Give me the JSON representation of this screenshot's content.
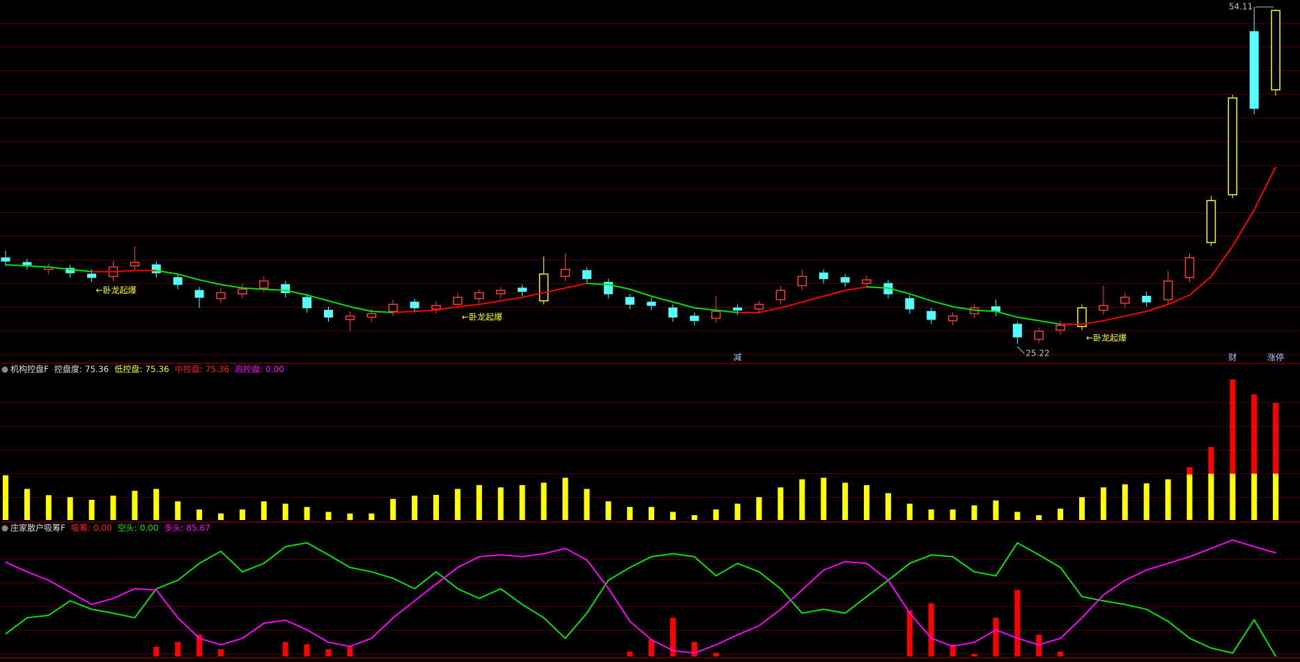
{
  "chart_data": [
    {
      "type": "candlestick",
      "open": [
        32.6,
        32.2,
        31.6,
        31.7,
        31.2,
        31.0,
        31.9,
        32.0,
        30.9,
        29.8,
        29.1,
        29.5,
        30.0,
        30.3,
        29.2,
        28.1,
        27.3,
        27.5,
        28.0,
        28.8,
        28.2,
        28.6,
        29.1,
        29.5,
        30.0,
        28.9,
        31.0,
        31.5,
        30.5,
        29.2,
        28.8,
        28.3,
        27.6,
        27.4,
        28.3,
        28.2,
        29.0,
        30.2,
        31.3,
        30.9,
        30.4,
        30.4,
        29.1,
        28.0,
        27.2,
        27.8,
        28.4,
        26.9,
        25.6,
        26.4,
        26.7,
        28.1,
        28.7,
        29.3,
        29.0,
        30.9,
        33.9,
        38.0,
        52.0,
        47.0
      ],
      "high": [
        33.2,
        32.5,
        32.1,
        32.0,
        31.6,
        32.3,
        33.6,
        32.3,
        31.2,
        30.1,
        30.0,
        30.4,
        31.0,
        30.6,
        29.5,
        28.4,
        28.0,
        28.2,
        29.0,
        29.1,
        28.9,
        29.6,
        29.9,
        30.1,
        30.3,
        32.7,
        33.0,
        31.8,
        30.8,
        29.5,
        29.2,
        28.6,
        27.9,
        29.3,
        28.6,
        28.9,
        30.2,
        31.6,
        31.6,
        31.2,
        31.1,
        30.7,
        29.4,
        28.3,
        27.9,
        28.6,
        29.0,
        27.1,
        26.6,
        27.2,
        28.6,
        30.2,
        29.6,
        29.7,
        31.5,
        33.0,
        37.9,
        46.6,
        54.11,
        53.9
      ],
      "low": [
        31.9,
        31.6,
        31.2,
        30.9,
        30.5,
        30.6,
        31.5,
        30.9,
        29.9,
        28.3,
        28.7,
        29.1,
        29.6,
        29.2,
        27.9,
        27.1,
        26.3,
        27.1,
        27.6,
        27.9,
        27.8,
        28.2,
        28.7,
        29.1,
        29.3,
        28.6,
        30.6,
        30.4,
        29.1,
        28.2,
        28.1,
        27.1,
        26.8,
        27.0,
        27.7,
        27.8,
        28.6,
        29.8,
        30.4,
        30.1,
        30.0,
        29.1,
        27.8,
        26.9,
        26.8,
        27.4,
        27.6,
        25.22,
        25.3,
        26.0,
        26.4,
        27.7,
        28.3,
        28.4,
        28.6,
        30.5,
        33.6,
        37.7,
        44.9,
        46.5
      ],
      "close": [
        32.3,
        32.0,
        31.8,
        31.3,
        30.9,
        31.8,
        32.2,
        31.3,
        30.3,
        29.2,
        29.6,
        29.9,
        30.6,
        29.6,
        28.3,
        27.5,
        27.6,
        27.8,
        28.6,
        28.3,
        28.5,
        29.2,
        29.6,
        29.8,
        29.7,
        31.2,
        31.6,
        30.8,
        29.5,
        28.6,
        28.5,
        27.5,
        27.2,
        28.0,
        28.1,
        28.6,
        29.8,
        31.0,
        30.8,
        30.5,
        30.7,
        29.5,
        28.2,
        27.3,
        27.6,
        28.3,
        28.0,
        25.8,
        26.3,
        26.8,
        28.3,
        28.5,
        29.2,
        28.8,
        30.6,
        32.6,
        37.5,
        46.3,
        45.4,
        53.8
      ],
      "up_color": "#ff3c3c",
      "down_color": "#54fcfc",
      "limit_up": [
        25,
        50,
        56,
        57,
        59
      ],
      "limit_up_color": "#ffff00",
      "ma": {
        "values": [
          32.0,
          31.9,
          31.8,
          31.6,
          31.4,
          31.4,
          31.5,
          31.5,
          31.2,
          30.7,
          30.3,
          30.0,
          29.9,
          29.8,
          29.4,
          28.9,
          28.4,
          28.0,
          27.9,
          28.0,
          28.1,
          28.4,
          28.6,
          28.9,
          29.2,
          29.6,
          30.0,
          30.4,
          30.3,
          29.9,
          29.3,
          28.8,
          28.3,
          28.1,
          27.9,
          27.9,
          28.3,
          28.8,
          29.3,
          29.8,
          30.1,
          30.0,
          29.5,
          28.9,
          28.4,
          28.1,
          28.0,
          27.5,
          27.2,
          26.9,
          26.9,
          27.2,
          27.6,
          28.0,
          28.6,
          29.4,
          31.0,
          33.6,
          36.7,
          40.4
        ],
        "up_color": "#ff0000",
        "down_color": "#00e600"
      },
      "signals": [
        null,
        null,
        null,
        null,
        "←卧龙起爆",
        null,
        null,
        null,
        null,
        null,
        null,
        null,
        null,
        null,
        null,
        null,
        null,
        null,
        null,
        null,
        null,
        "←卧龙起爆",
        null,
        null,
        null,
        null,
        null,
        null,
        null,
        null,
        null,
        null,
        null,
        null,
        null,
        null,
        null,
        null,
        null,
        null,
        null,
        null,
        null,
        null,
        null,
        null,
        null,
        null,
        null,
        null,
        "←卧龙起爆",
        null,
        null,
        null,
        null,
        null,
        null,
        null,
        null,
        null
      ],
      "signal_color": "#ffff00",
      "events": [
        null,
        null,
        null,
        null,
        null,
        null,
        null,
        null,
        null,
        null,
        null,
        null,
        null,
        null,
        null,
        null,
        null,
        null,
        null,
        null,
        null,
        null,
        null,
        null,
        null,
        null,
        null,
        null,
        null,
        null,
        null,
        null,
        null,
        null,
        "减",
        null,
        null,
        null,
        null,
        null,
        null,
        null,
        null,
        null,
        null,
        null,
        null,
        null,
        null,
        null,
        null,
        null,
        null,
        null,
        null,
        null,
        null,
        "财",
        null,
        "涨停"
      ],
      "event_color": "#a8c8ff",
      "ylim": [
        23.6,
        54.7
      ]
    },
    {
      "type": "bar",
      "title": "机构控盘F",
      "readouts": [
        {
          "label": "控盘度:",
          "value": 75.36,
          "color": "#e0e0e0"
        },
        {
          "label": "低控盘:",
          "value": 75.36,
          "color": "#ffff00"
        },
        {
          "label": "中控盘:",
          "value": 75.36,
          "color": "#ff2020"
        },
        {
          "label": "高控盘:",
          "value": 0,
          "value_label": "0.00",
          "color": "#ff00ff"
        }
      ],
      "series": [
        {
          "color": "#ff0000",
          "values": [
            null,
            null,
            null,
            null,
            null,
            null,
            null,
            null,
            null,
            null,
            null,
            null,
            null,
            null,
            null,
            null,
            null,
            null,
            null,
            null,
            null,
            null,
            null,
            null,
            null,
            null,
            null,
            null,
            null,
            null,
            null,
            null,
            null,
            null,
            null,
            null,
            null,
            null,
            null,
            null,
            null,
            null,
            null,
            null,
            null,
            null,
            null,
            null,
            null,
            null,
            null,
            null,
            null,
            null,
            null,
            34,
            47,
            90.5,
            81,
            75.36
          ]
        },
        {
          "color": "#ffff00",
          "values": [
            28.8,
            20,
            16,
            14.7,
            13,
            15.7,
            18.8,
            20,
            12,
            6.8,
            4.2,
            6.8,
            12,
            10.5,
            8.4,
            5.2,
            4.2,
            4.2,
            13.6,
            15.7,
            16.2,
            20,
            22.5,
            21,
            22.5,
            24,
            27.2,
            20,
            12,
            8.4,
            8.4,
            5.2,
            3.1,
            6.8,
            10.5,
            14.7,
            21,
            26.2,
            27.2,
            24,
            22.5,
            17.3,
            10.5,
            6.8,
            6.8,
            9.4,
            12.6,
            5.2,
            3.1,
            7.3,
            14.7,
            21,
            23,
            23.6,
            26.2,
            29.3,
            29.8,
            29.8,
            29.8,
            29.8
          ]
        }
      ],
      "ylim": [
        0,
        100
      ]
    },
    {
      "type": "line",
      "title": "庄家散户吸筹F",
      "readouts": [
        {
          "label": "吸筹:",
          "value": 0,
          "value_label": "0.00",
          "color": "#ff2020"
        },
        {
          "label": "空头:",
          "value": 0,
          "value_label": "0.00",
          "color": "#00e600"
        },
        {
          "label": "多头:",
          "value": 85.67,
          "color": "#ff00ff"
        }
      ],
      "series": [
        {
          "type": "bar",
          "color": "#ff0000",
          "values": [
            0,
            0,
            0,
            0,
            0,
            0,
            0,
            8,
            12,
            18,
            6,
            0,
            0,
            12,
            10,
            6,
            8,
            0,
            0,
            0,
            0,
            0,
            0,
            0,
            0,
            0,
            0,
            0,
            0,
            4,
            14,
            32,
            12,
            3,
            0,
            0,
            0,
            0,
            0,
            0,
            0,
            0,
            38,
            44,
            10,
            2,
            32,
            55,
            18,
            4,
            0,
            0,
            0,
            0,
            0,
            0,
            0,
            0,
            0,
            0
          ]
        },
        {
          "color": "#00e600",
          "values": [
            18.6,
            32,
            34,
            46,
            39,
            35.8,
            32,
            56,
            63,
            77,
            87,
            70,
            77,
            90.8,
            94,
            84,
            73.6,
            70,
            64.6,
            56,
            70,
            56,
            48,
            56,
            43,
            32,
            15,
            35.8,
            63,
            73.6,
            82.5,
            85,
            82.5,
            66.7,
            77,
            70,
            56,
            35.8,
            39,
            35.8,
            49.5,
            63,
            77,
            84,
            82.5,
            70,
            66.7,
            94,
            84,
            73.6,
            49.5,
            46,
            43,
            39,
            29,
            15,
            6.9,
            2.8,
            30.3,
            0
          ]
        },
        {
          "color": "#ff00ff",
          "values": [
            78,
            70,
            63,
            53,
            43,
            48,
            56,
            55,
            32,
            15,
            9.6,
            15,
            27.5,
            30,
            22,
            11.7,
            8.3,
            15,
            32,
            46,
            60,
            73.6,
            82.5,
            84,
            82.5,
            85,
            89.4,
            79.8,
            56.4,
            29,
            13.8,
            4.8,
            2.8,
            9.6,
            17.9,
            25.4,
            39,
            55,
            71.5,
            78.4,
            77,
            63,
            35.8,
            15,
            8.3,
            11.7,
            22,
            15,
            9.6,
            15,
            32,
            51,
            63,
            71.5,
            77,
            82.5,
            89.4,
            96.3,
            90.8,
            85.67
          ]
        }
      ],
      "ylim": [
        0,
        110
      ]
    }
  ]
}
